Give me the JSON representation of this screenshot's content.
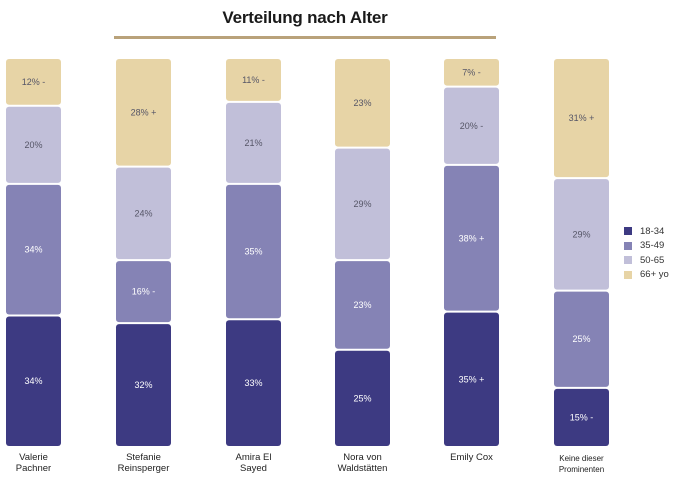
{
  "title": "Verteilung nach Alter",
  "colors": {
    "title_rule": "#b9a27a"
  },
  "chart_data": {
    "type": "bar",
    "stacked": true,
    "normalized_percent": true,
    "categories": [
      "Valerie\nPachner",
      "Stefanie\nReinsperger",
      "Amira El\nSayed",
      "Nora von\nWaldstätten",
      "Emily Cox",
      "Keine dieser\nProminenten"
    ],
    "series": [
      {
        "name": "18-34",
        "color": "#3d3a82",
        "values": [
          34,
          32,
          33,
          25,
          35,
          15
        ],
        "labels": [
          "34%",
          "32%",
          "33%",
          "25%",
          "35% +",
          "15% -"
        ]
      },
      {
        "name": "35-49",
        "color": "#8583b5",
        "values": [
          34,
          16,
          35,
          23,
          38,
          25
        ],
        "labels": [
          "34%",
          "16% -",
          "35%",
          "23%",
          "38% +",
          "25%"
        ]
      },
      {
        "name": "50-65",
        "color": "#c1bfd9",
        "values": [
          20,
          24,
          21,
          29,
          20,
          29
        ],
        "labels": [
          "20%",
          "24%",
          "21%",
          "29%",
          "20% -",
          "29%"
        ]
      },
      {
        "name": "66+ yo",
        "color": "#e7d4a6",
        "values": [
          12,
          28,
          11,
          23,
          7,
          31
        ],
        "labels": [
          "12% -",
          "28% +",
          "11% -",
          "23%",
          "7% -",
          "31% +"
        ]
      }
    ],
    "legend_position": "right"
  }
}
